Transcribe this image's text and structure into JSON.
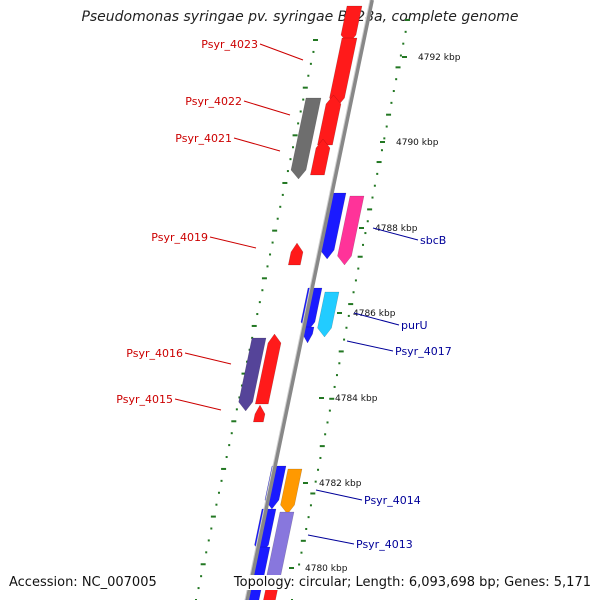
{
  "title": "Pseudomonas syringae pv. syringae B728a, complete genome",
  "accession": "Accession: NC_007005",
  "topology": "Topology: circular; Length: 6,093,698 bp; Genes: 5,171",
  "colors": {
    "red": "#ff1a1a",
    "gray": "#6e6e6e",
    "blue": "#1a1aff",
    "pink": "#ff3399",
    "cyan": "#22ccff",
    "slate": "#554499",
    "orange": "#ff9900",
    "lavender": "#8877dd",
    "backbone": "#888888",
    "dots": "#227722",
    "label_red": "#cc0000",
    "label_blue": "#000099"
  },
  "ticks": [
    "4792 kbp",
    "4790 kbp",
    "4788 kbp",
    "4786 kbp",
    "4784 kbp",
    "4782 kbp",
    "4780 kbp"
  ],
  "labels": [
    {
      "text": "Psyr_4023",
      "color": "red"
    },
    {
      "text": "Psyr_4022",
      "color": "red"
    },
    {
      "text": "Psyr_4021",
      "color": "red"
    },
    {
      "text": "Psyr_4019",
      "color": "red"
    },
    {
      "text": "Psyr_4016",
      "color": "red"
    },
    {
      "text": "Psyr_4015",
      "color": "red"
    },
    {
      "text": "sbcB",
      "color": "blue"
    },
    {
      "text": "purU",
      "color": "blue"
    },
    {
      "text": "Psyr_4017",
      "color": "blue"
    },
    {
      "text": "Psyr_4014",
      "color": "blue"
    },
    {
      "text": "Psyr_4013",
      "color": "blue"
    }
  ]
}
